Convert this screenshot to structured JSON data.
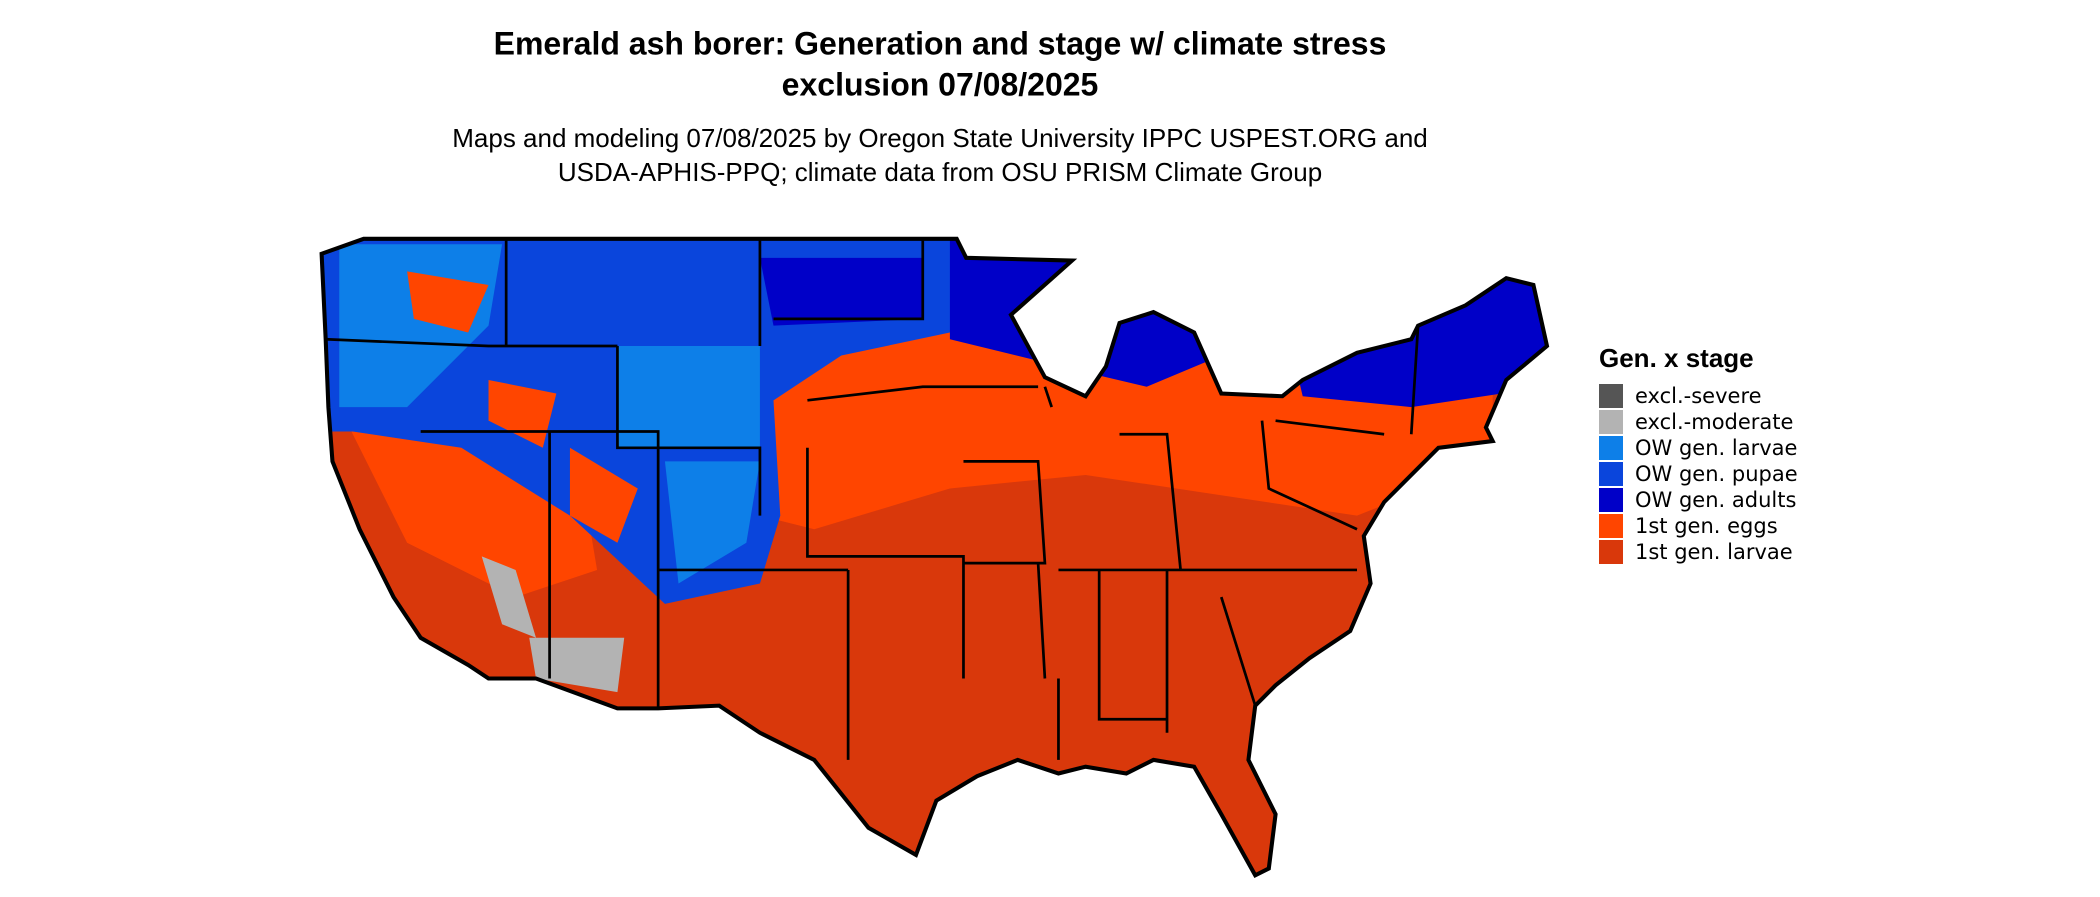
{
  "title": {
    "lines": [
      "Emerald ash borer: Generation and stage w/ climate stress",
      "exclusion 07/08/2025"
    ]
  },
  "subtitle": {
    "lines": [
      "Maps and modeling 07/08/2025 by Oregon State University IPPC USPEST.ORG and",
      "USDA-APHIS-PPQ; climate data from OSU PRISM Climate Group"
    ]
  },
  "legend": {
    "title": "Gen. x stage",
    "items": [
      {
        "label": "excl.-severe",
        "color": "#555555"
      },
      {
        "label": "excl.-moderate",
        "color": "#b3b3b3"
      },
      {
        "label": "OW gen. larvae",
        "color": "#0d7fe8"
      },
      {
        "label": "OW gen. pupae",
        "color": "#0a45dc"
      },
      {
        "label": "OW gen. adults",
        "color": "#0000c8"
      },
      {
        "label": "1st gen. eggs",
        "color": "#ff4500"
      },
      {
        "label": "1st gen. larvae",
        "color": "#d9380b"
      }
    ]
  }
}
